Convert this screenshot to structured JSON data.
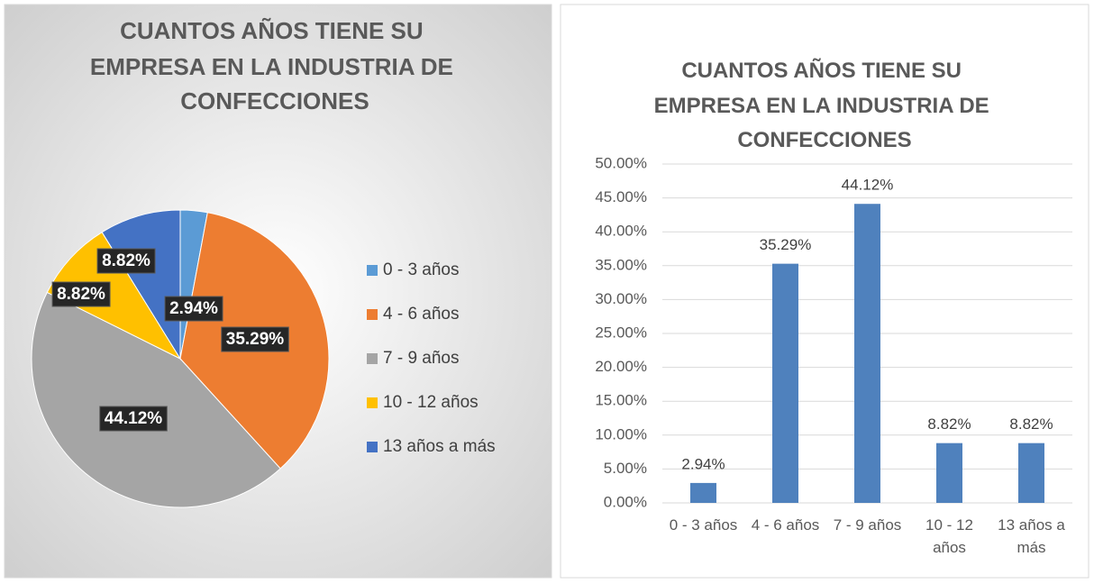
{
  "chart_data": [
    {
      "type": "pie",
      "title": "CUANTOS AÑOS TIENE SU EMPRESA EN LA INDUSTRIA DE CONFECCIONES",
      "categories": [
        "0 - 3 años",
        "4 - 6 años",
        "7 - 9 años",
        "10 - 12 años",
        "13 años a más"
      ],
      "values": [
        2.94,
        35.29,
        44.12,
        8.82,
        8.82
      ],
      "value_labels": [
        "2.94%",
        "35.29%",
        "44.12%",
        "8.82%",
        "8.82%"
      ],
      "colors": [
        "#5b9bd5",
        "#ed7d31",
        "#a5a5a5",
        "#ffc000",
        "#4472c4"
      ],
      "legend": "right"
    },
    {
      "type": "bar",
      "title": "CUANTOS AÑOS TIENE SU EMPRESA EN LA INDUSTRIA DE CONFECCIONES",
      "categories": [
        "0 - 3 años",
        "4 - 6 años",
        "7 - 9 años",
        "10 - 12 años",
        "13 años a más"
      ],
      "values": [
        2.94,
        35.29,
        44.12,
        8.82,
        8.82
      ],
      "value_labels": [
        "2.94%",
        "35.29%",
        "44.12%",
        "8.82%",
        "8.82%"
      ],
      "color": "#4f81bd",
      "ylim": [
        0,
        50
      ],
      "yticks": [
        {
          "value": 0,
          "label": "0.00%"
        },
        {
          "value": 5,
          "label": "5.00%"
        },
        {
          "value": 10,
          "label": "10.00%"
        },
        {
          "value": 15,
          "label": "15.00%"
        },
        {
          "value": 20,
          "label": "20.00%"
        },
        {
          "value": 25,
          "label": "25.00%"
        },
        {
          "value": 30,
          "label": "30.00%"
        },
        {
          "value": 35,
          "label": "35.00%"
        },
        {
          "value": 40,
          "label": "40.00%"
        },
        {
          "value": 45,
          "label": "45.00%"
        },
        {
          "value": 50,
          "label": "50.00%"
        }
      ],
      "grid": true
    }
  ]
}
